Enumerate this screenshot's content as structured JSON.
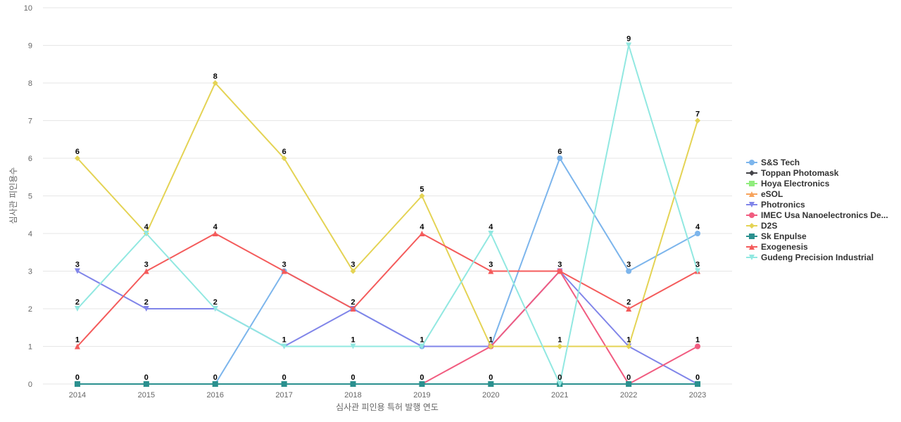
{
  "chart_data": {
    "type": "line",
    "title": "",
    "xlabel": "심사관 피인용 특허 발행 연도",
    "ylabel": "심사관 피인용수",
    "x": [
      "2014",
      "2015",
      "2016",
      "2017",
      "2018",
      "2019",
      "2020",
      "2021",
      "2022",
      "2023"
    ],
    "ylim": [
      0,
      10
    ],
    "yticks": [
      "0",
      "1",
      "2",
      "3",
      "4",
      "5",
      "6",
      "7",
      "8",
      "9",
      "10"
    ],
    "grid": true,
    "legend_position": "right",
    "series": [
      {
        "name": "S&S Tech",
        "color": "#7cb5ec",
        "marker": "circle",
        "values": [
          0,
          0,
          0,
          3,
          2,
          1,
          1,
          6,
          3,
          4
        ]
      },
      {
        "name": "Toppan Photomask",
        "color": "#434348",
        "marker": "diamond",
        "values": [
          0,
          0,
          0,
          0,
          0,
          0,
          0,
          0,
          0,
          0
        ]
      },
      {
        "name": "Hoya Electronics",
        "color": "#90ed7d",
        "marker": "square",
        "values": [
          0,
          0,
          0,
          0,
          0,
          0,
          0,
          0,
          0,
          0
        ]
      },
      {
        "name": "eSOL",
        "color": "#f7a35c",
        "marker": "triangle",
        "values": [
          0,
          0,
          0,
          0,
          0,
          0,
          0,
          0,
          0,
          0
        ]
      },
      {
        "name": "Photronics",
        "color": "#8085e9",
        "marker": "triangle-down",
        "values": [
          3,
          2,
          2,
          1,
          2,
          1,
          1,
          3,
          1,
          0
        ]
      },
      {
        "name": "IMEC Usa Nanoelectronics De...",
        "color": "#f15c80",
        "marker": "circle",
        "values": [
          0,
          0,
          0,
          0,
          0,
          0,
          1,
          3,
          0,
          1
        ]
      },
      {
        "name": "D2S",
        "color": "#e4d354",
        "marker": "diamond",
        "values": [
          6,
          4,
          8,
          6,
          3,
          5,
          1,
          1,
          1,
          7
        ]
      },
      {
        "name": "Sk Enpulse",
        "color": "#2b908f",
        "marker": "square",
        "values": [
          0,
          0,
          0,
          0,
          0,
          0,
          0,
          0,
          0,
          0
        ]
      },
      {
        "name": "Exogenesis",
        "color": "#f45b5b",
        "marker": "triangle",
        "values": [
          1,
          3,
          4,
          3,
          2,
          4,
          3,
          3,
          2,
          3
        ]
      },
      {
        "name": "Gudeng Precision Industrial",
        "color": "#91e8e1",
        "marker": "triangle-down",
        "values": [
          2,
          4,
          2,
          1,
          1,
          1,
          4,
          0,
          9,
          3
        ]
      }
    ],
    "data_labels": [
      {
        "x": "2014",
        "label": "6",
        "value": 6
      },
      {
        "x": "2014",
        "label": "3",
        "value": 3
      },
      {
        "x": "2014",
        "label": "2",
        "value": 2
      },
      {
        "x": "2014",
        "label": "1",
        "value": 1
      },
      {
        "x": "2014",
        "label": "0",
        "value": 0
      },
      {
        "x": "2015",
        "label": "4",
        "value": 4
      },
      {
        "x": "2015",
        "label": "3",
        "value": 3
      },
      {
        "x": "2015",
        "label": "2",
        "value": 2
      },
      {
        "x": "2015",
        "label": "0",
        "value": 0
      },
      {
        "x": "2016",
        "label": "8",
        "value": 8
      },
      {
        "x": "2016",
        "label": "4",
        "value": 4
      },
      {
        "x": "2016",
        "label": "2",
        "value": 2
      },
      {
        "x": "2016",
        "label": "0",
        "value": 0
      },
      {
        "x": "2017",
        "label": "6",
        "value": 6
      },
      {
        "x": "2017",
        "label": "3",
        "value": 3
      },
      {
        "x": "2017",
        "label": "1",
        "value": 1
      },
      {
        "x": "2017",
        "label": "0",
        "value": 0
      },
      {
        "x": "2018",
        "label": "3",
        "value": 3
      },
      {
        "x": "2018",
        "label": "2",
        "value": 2
      },
      {
        "x": "2018",
        "label": "1",
        "value": 1
      },
      {
        "x": "2018",
        "label": "0",
        "value": 0
      },
      {
        "x": "2019",
        "label": "5",
        "value": 5
      },
      {
        "x": "2019",
        "label": "4",
        "value": 4
      },
      {
        "x": "2019",
        "label": "1",
        "value": 1
      },
      {
        "x": "2019",
        "label": "0",
        "value": 0
      },
      {
        "x": "2020",
        "label": "4",
        "value": 4
      },
      {
        "x": "2020",
        "label": "3",
        "value": 3
      },
      {
        "x": "2020",
        "label": "1",
        "value": 1
      },
      {
        "x": "2020",
        "label": "0",
        "value": 0
      },
      {
        "x": "2021",
        "label": "6",
        "value": 6
      },
      {
        "x": "2021",
        "label": "3",
        "value": 3
      },
      {
        "x": "2021",
        "label": "1",
        "value": 1
      },
      {
        "x": "2021",
        "label": "0",
        "value": 0
      },
      {
        "x": "2022",
        "label": "9",
        "value": 9
      },
      {
        "x": "2022",
        "label": "3",
        "value": 3
      },
      {
        "x": "2022",
        "label": "2",
        "value": 2
      },
      {
        "x": "2022",
        "label": "1",
        "value": 1
      },
      {
        "x": "2022",
        "label": "0",
        "value": 0
      },
      {
        "x": "2023",
        "label": "7",
        "value": 7
      },
      {
        "x": "2023",
        "label": "4",
        "value": 4
      },
      {
        "x": "2023",
        "label": "3",
        "value": 3
      },
      {
        "x": "2023",
        "label": "1",
        "value": 1
      },
      {
        "x": "2023",
        "label": "0",
        "value": 0
      }
    ]
  }
}
